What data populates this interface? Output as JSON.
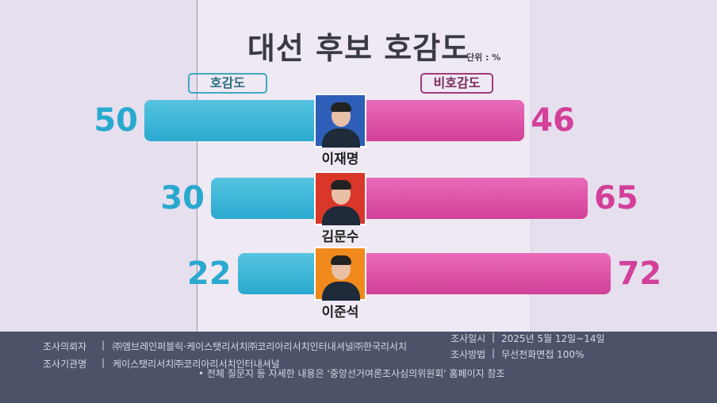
{
  "chart_data": {
    "type": "bar",
    "title": "대선 후보 호감도",
    "unit": "단위 : %",
    "legend": {
      "left": "호감도",
      "right": "비호감도"
    },
    "categories": [
      "이재명",
      "김문수",
      "이준석"
    ],
    "series": [
      {
        "name": "호감도",
        "values": [
          50,
          30,
          22
        ],
        "color": "#2aa9cf"
      },
      {
        "name": "비호감도",
        "values": [
          46,
          65,
          72
        ],
        "color": "#d2409a"
      }
    ],
    "photo_colors": [
      "#2d5fb8",
      "#d8372a",
      "#f08a1c"
    ]
  },
  "footer": {
    "requester_label": "조사의뢰자",
    "requester": "㈜엠브레인퍼블릭·케이스탯리서치㈜코리아리서치인터내셔널㈜한국리서치",
    "agency_label": "조사기관명",
    "agency": "케이스탯리서치㈜코리아리서치인터내셔널",
    "date_label": "조사일시",
    "date": "2025년 5월 12일~14일",
    "method_label": "조사방법",
    "method": "무선전화면접 100%",
    "note": "• 전체 질문지 등 자세한 내용은 '중앙선거여론조사심의위원회' 홈페이지 참조",
    "sep": "|"
  }
}
